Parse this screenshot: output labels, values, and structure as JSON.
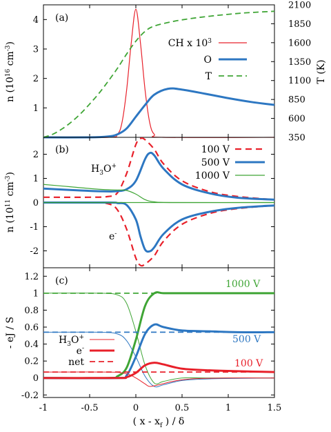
{
  "chart_data": [
    {
      "type": "line",
      "panel": "(a)",
      "ylabel": "n (10",
      "ylabel_sup": "16",
      "ylabel_unit": " cm",
      "ylabel_unit_sup": "-3",
      "ylabel_close": ")",
      "ylabel2": "T (K)",
      "xlim": [
        -1,
        1.5
      ],
      "ylim": [
        0,
        4.5
      ],
      "y2lim": [
        350,
        2100
      ],
      "yticks": [
        "1",
        "2",
        "3",
        "4"
      ],
      "y2ticks": [
        "350",
        "600",
        "850",
        "1100",
        "1350",
        "1600",
        "1850",
        "2100"
      ],
      "legend_position": "right",
      "legend": [
        {
          "label": "CH x 10",
          "sup": "3",
          "color": "#e8202a",
          "style": "solid"
        },
        {
          "label": "O",
          "color": "#2d77c2",
          "style": "solid"
        },
        {
          "label": "T",
          "color": "#3fa535",
          "style": "dashed"
        }
      ],
      "series": [
        {
          "name": "CH x 10³",
          "axis": "left",
          "x": [
            -1,
            -0.3,
            -0.2,
            -0.15,
            -0.1,
            -0.05,
            0,
            0.05,
            0.1,
            0.15,
            0.2,
            0.3,
            1.5
          ],
          "y": [
            0,
            0,
            0.1,
            0.5,
            1.6,
            3.2,
            4.35,
            3.2,
            1.6,
            0.5,
            0.1,
            0,
            0
          ]
        },
        {
          "name": "O",
          "axis": "left",
          "x": [
            -1,
            -0.5,
            -0.3,
            -0.2,
            -0.1,
            0,
            0.1,
            0.2,
            0.35,
            0.5,
            0.75,
            1,
            1.25,
            1.5
          ],
          "y": [
            0,
            0,
            0.03,
            0.1,
            0.3,
            0.7,
            1.1,
            1.45,
            1.65,
            1.62,
            1.48,
            1.33,
            1.2,
            1.1
          ]
        },
        {
          "name": "T",
          "axis": "right",
          "x": [
            -1,
            -0.9,
            -0.8,
            -0.7,
            -0.6,
            -0.5,
            -0.4,
            -0.3,
            -0.2,
            -0.1,
            0,
            0.1,
            0.2,
            0.4,
            0.6,
            0.8,
            1,
            1.2,
            1.5
          ],
          "y": [
            350,
            390,
            460,
            550,
            660,
            790,
            930,
            1090,
            1260,
            1450,
            1620,
            1750,
            1820,
            1880,
            1920,
            1950,
            1975,
            1995,
            2015
          ]
        }
      ]
    },
    {
      "type": "line",
      "panel": "(b)",
      "ylabel": "n (10",
      "ylabel_sup": "11",
      "ylabel_unit": " cm",
      "ylabel_unit_sup": "-3",
      "ylabel_close": ")",
      "xlim": [
        -1,
        1.5
      ],
      "ylim": [
        -2.7,
        2.7
      ],
      "yticks": [
        "-2",
        "-1",
        "0",
        "1",
        "2"
      ],
      "legend_position": "top-right",
      "legend": [
        {
          "label": "100 V",
          "color": "#e8202a",
          "style": "dashed"
        },
        {
          "label": "500 V",
          "color": "#2d77c2",
          "style": "solid"
        },
        {
          "label": "1000 V",
          "color": "#3fa535",
          "style": "solid"
        }
      ],
      "annotations": [
        {
          "text": "H",
          "sub": "3",
          "rest": "O",
          "sup": "+"
        },
        {
          "text": "e",
          "sup": "-"
        }
      ],
      "series": [
        {
          "name": "100 V H3O+",
          "x": [
            -1,
            -0.5,
            -0.3,
            -0.2,
            -0.1,
            0,
            0.05,
            0.1,
            0.2,
            0.3,
            0.5,
            0.8,
            1.1,
            1.5
          ],
          "y": [
            0.22,
            0.22,
            0.25,
            0.4,
            1.2,
            2.4,
            2.65,
            2.6,
            2.2,
            1.6,
            0.9,
            0.45,
            0.25,
            0.12
          ]
        },
        {
          "name": "100 V e-",
          "x": [
            -1,
            -0.5,
            -0.3,
            -0.2,
            -0.1,
            0,
            0.05,
            0.1,
            0.2,
            0.3,
            0.5,
            0.8,
            1.1,
            1.5
          ],
          "y": [
            0,
            0,
            -0.05,
            -0.3,
            -1.1,
            -2.3,
            -2.6,
            -2.55,
            -2.2,
            -1.6,
            -0.9,
            -0.45,
            -0.25,
            -0.12
          ]
        },
        {
          "name": "500 V H3O+",
          "x": [
            -1,
            -0.6,
            -0.3,
            -0.2,
            -0.1,
            0,
            0.1,
            0.15,
            0.2,
            0.3,
            0.5,
            0.8,
            1.1,
            1.5
          ],
          "y": [
            0.58,
            0.5,
            0.46,
            0.47,
            0.55,
            0.9,
            1.8,
            2.05,
            1.95,
            1.4,
            0.75,
            0.38,
            0.2,
            0.12
          ]
        },
        {
          "name": "500 V e-",
          "x": [
            -1,
            -0.3,
            -0.2,
            -0.1,
            0,
            0.05,
            0.1,
            0.15,
            0.2,
            0.3,
            0.5,
            0.8,
            1.1,
            1.5
          ],
          "y": [
            0,
            0,
            -0.02,
            -0.1,
            -0.7,
            -1.4,
            -1.95,
            -2.02,
            -1.85,
            -1.3,
            -0.7,
            -0.38,
            -0.22,
            -0.12
          ]
        },
        {
          "name": "1000 V H3O+",
          "x": [
            -1,
            -0.7,
            -0.4,
            -0.2,
            -0.1,
            0,
            0.1,
            0.2,
            0.4,
            1.5
          ],
          "y": [
            0.75,
            0.65,
            0.55,
            0.52,
            0.5,
            0.35,
            0.12,
            0.03,
            0,
            0
          ]
        },
        {
          "name": "1000 V e-",
          "x": [
            -1,
            1.5
          ],
          "y": [
            0,
            0
          ]
        }
      ]
    },
    {
      "type": "line",
      "panel": "(c)",
      "ylabel": "- eJ / S",
      "xlabel": "( x - x",
      "xlabel_sub": "f",
      "xlabel_rest": " ) / δ",
      "xlim": [
        -1,
        1.5
      ],
      "ylim": [
        -0.23,
        1.3
      ],
      "yticks": [
        "-0.2",
        "0",
        "0.2",
        "0.4",
        "0.6",
        "0.8",
        "1",
        "1.2"
      ],
      "xticks": [
        "-1",
        "-0.5",
        "0",
        "0.5",
        "1",
        "1.5"
      ],
      "legend_position": "bottom-left",
      "legend": [
        {
          "label": "H",
          "sub": "3",
          "rest": "O",
          "sup": "+",
          "color": "#e8202a",
          "style": "solid"
        },
        {
          "label": "e",
          "sup": "-",
          "color": "#e8202a",
          "style": "thick"
        },
        {
          "label": "net",
          "color": "#e8202a",
          "style": "dashed"
        }
      ],
      "annotations": [
        {
          "text": "1000 V",
          "color": "#3fa535"
        },
        {
          "text": "500 V",
          "color": "#2d77c2"
        },
        {
          "text": "100 V",
          "color": "#e8202a"
        }
      ],
      "series": [
        {
          "name": "1000 V net",
          "color": "#3fa535",
          "style": "dashed",
          "x": [
            -1,
            1.5
          ],
          "y": [
            1,
            1
          ]
        },
        {
          "name": "1000 V H3O+",
          "color": "#3fa535",
          "style": "thin",
          "x": [
            -1,
            -0.4,
            -0.2,
            -0.1,
            0,
            0.1,
            0.2,
            0.3,
            0.5,
            0.8,
            1.5
          ],
          "y": [
            1,
            1,
            0.98,
            0.88,
            0.55,
            0.15,
            -0.06,
            -0.04,
            0,
            0,
            0
          ]
        },
        {
          "name": "1000 V e-",
          "color": "#3fa535",
          "style": "thick",
          "x": [
            -1,
            -0.3,
            -0.2,
            -0.1,
            0,
            0.1,
            0.2,
            0.3,
            0.5,
            0.8,
            1.5
          ],
          "y": [
            0,
            0,
            0.02,
            0.12,
            0.45,
            0.85,
            1.0,
            1.0,
            1.0,
            1.0,
            1.0
          ]
        },
        {
          "name": "500 V net",
          "color": "#2d77c2",
          "style": "dashed",
          "x": [
            -1,
            1.5
          ],
          "y": [
            0.54,
            0.54
          ]
        },
        {
          "name": "500 V H3O+",
          "color": "#2d77c2",
          "style": "thin",
          "x": [
            -1,
            -0.4,
            -0.2,
            -0.1,
            0,
            0.1,
            0.2,
            0.3,
            0.5,
            0.8,
            1.5
          ],
          "y": [
            0.54,
            0.54,
            0.52,
            0.44,
            0.25,
            0.02,
            -0.1,
            -0.08,
            -0.03,
            -0.01,
            0
          ]
        },
        {
          "name": "500 V e-",
          "color": "#2d77c2",
          "style": "thick",
          "x": [
            -1,
            -0.2,
            -0.1,
            0,
            0.1,
            0.2,
            0.3,
            0.5,
            0.8,
            1.1,
            1.5
          ],
          "y": [
            0,
            0,
            0.03,
            0.25,
            0.52,
            0.63,
            0.6,
            0.56,
            0.55,
            0.54,
            0.54
          ]
        },
        {
          "name": "100 V net",
          "color": "#e8202a",
          "style": "dashed",
          "x": [
            -1,
            1.5
          ],
          "y": [
            0.07,
            0.07
          ]
        },
        {
          "name": "100 V H3O+",
          "color": "#e8202a",
          "style": "thin",
          "x": [
            -1,
            -0.3,
            -0.1,
            0,
            0.1,
            0.15,
            0.25,
            0.4,
            0.6,
            1,
            1.5
          ],
          "y": [
            0.07,
            0.07,
            0.05,
            0,
            -0.07,
            -0.1,
            -0.08,
            -0.04,
            -0.01,
            0,
            0
          ]
        },
        {
          "name": "100 V e-",
          "color": "#e8202a",
          "style": "thick",
          "x": [
            -1,
            -0.2,
            -0.1,
            0,
            0.1,
            0.2,
            0.3,
            0.5,
            0.8,
            1.1,
            1.5
          ],
          "y": [
            0,
            0,
            0.01,
            0.06,
            0.15,
            0.18,
            0.16,
            0.11,
            0.09,
            0.08,
            0.07
          ]
        }
      ]
    }
  ]
}
